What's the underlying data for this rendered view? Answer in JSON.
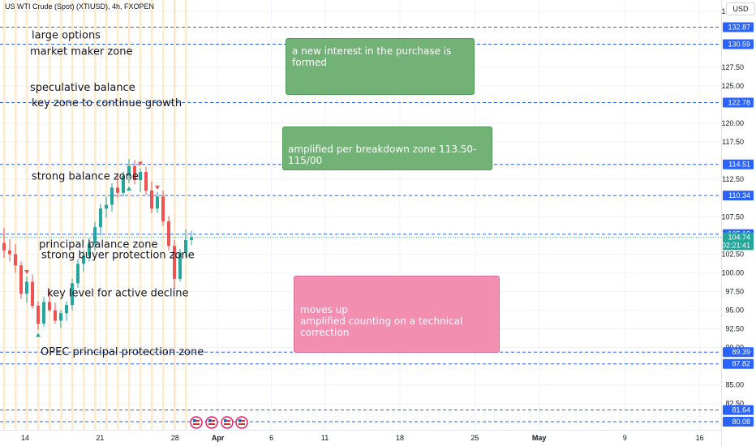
{
  "header": {
    "symbol_title": "US WTI Crude (Spot) (XTIUSD), 4h, FXOPEN",
    "currency": "USD"
  },
  "price_axis": {
    "ticks": [
      "135.00",
      "127.50",
      "125.00",
      "120.00",
      "117.50",
      "112.50",
      "107.50",
      "102.50",
      "100.00",
      "97.50",
      "95.00",
      "92.50",
      "90.00",
      "85.00",
      "82.50"
    ],
    "tick_values": [
      135,
      127.5,
      125,
      120,
      117.5,
      112.5,
      107.5,
      102.5,
      100,
      97.5,
      95,
      92.5,
      90,
      85,
      82.5
    ]
  },
  "time_axis": {
    "labels": [
      "14",
      "21",
      "28",
      "Apr",
      "6",
      "11",
      "18",
      "25",
      "May",
      "9",
      "16"
    ],
    "label_dates": [
      "2022-03-14",
      "2022-03-21",
      "2022-03-28",
      "2022-04-01",
      "2022-04-06",
      "2022-04-11",
      "2022-04-18",
      "2022-04-25",
      "2022-05-01",
      "2022-05-09",
      "2022-05-16"
    ],
    "bold": [
      "Apr",
      "May"
    ]
  },
  "level_labels": [
    {
      "text": "132.87",
      "value": 132.87,
      "color": "#2962ff"
    },
    {
      "text": "130.59",
      "value": 130.59,
      "color": "#2962ff"
    },
    {
      "text": "122.78",
      "value": 122.78,
      "color": "#2962ff"
    },
    {
      "text": "114.51",
      "value": 114.51,
      "color": "#2962ff"
    },
    {
      "text": "110.34",
      "value": 110.34,
      "color": "#2962ff"
    },
    {
      "text": "105.18",
      "value": 105.18,
      "color": "#2962ff"
    },
    {
      "text": "104.74",
      "value": 104.74,
      "color": "#26a69a"
    },
    {
      "text": "02:21:41",
      "value": 103.7,
      "color": "#26a69a"
    },
    {
      "text": "89.39",
      "value": 89.39,
      "color": "#2962ff"
    },
    {
      "text": "87.82",
      "value": 87.82,
      "color": "#2962ff"
    },
    {
      "text": "81.64",
      "value": 81.64,
      "color": "#2962ff"
    },
    {
      "text": "80.08",
      "value": 80.08,
      "color": "#2962ff"
    }
  ],
  "annotations": [
    {
      "text": "large options",
      "price": 131.8
    },
    {
      "text": "market maker zone",
      "price": 129.6
    },
    {
      "text": "speculative balance",
      "price": 124.8
    },
    {
      "text": "key zone to continue growth",
      "price": 122.7
    },
    {
      "text": "strong balance zone",
      "price": 112.9
    },
    {
      "text": "principal balance zone",
      "price": 103.8
    },
    {
      "text": "strong buyer protection zone",
      "price": 102.4
    },
    {
      "text": "key level for active decline",
      "price": 97.3
    },
    {
      "text": "OPEC principal protection zone",
      "price": 89.4
    }
  ],
  "boxes": {
    "interest": "a new interest in the purchase is formed",
    "breakdown": "amplified per breakdown zone 113.50-115/00",
    "moves_up_line1": "moves up",
    "moves_up_line2": "amplified counting on a technical correction"
  },
  "colors": {
    "up": "#26a69a",
    "down": "#ef5350",
    "level": "#2962ff",
    "session": "#f5a623",
    "box_green": "#72b276",
    "box_pink": "#f28fb1"
  },
  "chart_data": {
    "type": "candlestick",
    "title": "US WTI Crude (Spot) (XTIUSD), 4h, FXOPEN",
    "ylim": [
      79.0,
      136.5
    ],
    "series": [
      {
        "values": [
          [
            104.0,
            106.0,
            102.0,
            103.0
          ],
          [
            103.0,
            104.5,
            101.5,
            102.5
          ],
          [
            102.5,
            103.8,
            100.0,
            101.0
          ],
          [
            101.0,
            101.5,
            96.5,
            97.2
          ],
          [
            97.2,
            99.5,
            96.0,
            98.8
          ],
          [
            98.8,
            99.8,
            95.2,
            95.6
          ],
          [
            95.6,
            96.2,
            92.4,
            93.2
          ],
          [
            93.2,
            96.8,
            92.8,
            96.1
          ],
          [
            96.1,
            97.8,
            94.8,
            95.0
          ],
          [
            95.0,
            96.0,
            93.2,
            93.6
          ],
          [
            93.6,
            95.0,
            92.6,
            94.6
          ],
          [
            94.6,
            96.2,
            93.6,
            95.7
          ],
          [
            95.7,
            99.2,
            95.0,
            98.6
          ],
          [
            98.6,
            101.8,
            98.0,
            101.2
          ],
          [
            101.2,
            103.0,
            100.2,
            102.3
          ],
          [
            102.3,
            104.6,
            101.5,
            103.9
          ],
          [
            103.9,
            106.8,
            103.0,
            106.1
          ],
          [
            106.1,
            109.2,
            105.0,
            108.6
          ],
          [
            108.6,
            110.2,
            107.4,
            109.1
          ],
          [
            109.1,
            112.0,
            108.2,
            111.4
          ],
          [
            111.4,
            113.0,
            110.0,
            110.7
          ],
          [
            110.7,
            113.6,
            110.2,
            113.0
          ],
          [
            113.0,
            115.2,
            112.0,
            114.3
          ],
          [
            114.3,
            115.1,
            111.8,
            112.4
          ],
          [
            112.4,
            114.0,
            110.8,
            113.5
          ],
          [
            113.5,
            114.2,
            110.4,
            111.0
          ],
          [
            111.0,
            112.2,
            108.0,
            108.6
          ],
          [
            108.6,
            110.8,
            108.0,
            110.2
          ],
          [
            110.2,
            111.0,
            106.3,
            106.9
          ],
          [
            106.9,
            107.6,
            103.0,
            103.6
          ],
          [
            103.6,
            104.4,
            97.9,
            99.2
          ],
          [
            99.2,
            103.2,
            98.8,
            102.7
          ],
          [
            102.7,
            105.8,
            102.1,
            104.4
          ],
          [
            104.4,
            105.6,
            103.7,
            104.74
          ]
        ]
      }
    ]
  }
}
